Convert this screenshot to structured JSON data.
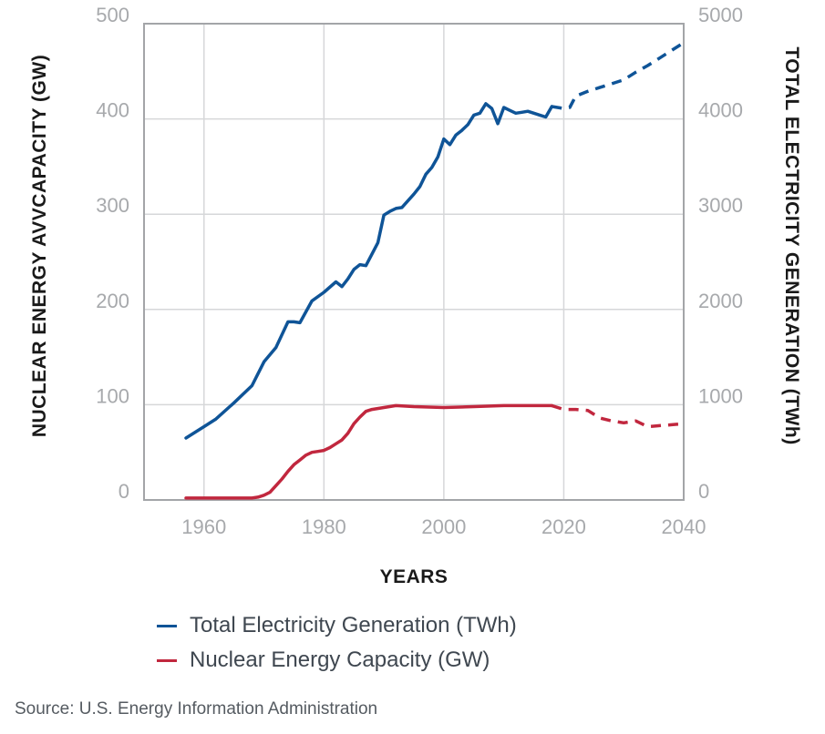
{
  "chart_data": {
    "type": "line",
    "title": "",
    "xlabel": "YEARS",
    "ylabel_left": "NUCLEAR ENERGY AVVCAPACITY (GW)",
    "ylabel_right": "TOTAL ELECTRICITY GENERATION (TWh)",
    "xlim": [
      1950,
      2040
    ],
    "ylim_left": [
      0,
      500
    ],
    "ylim_right": [
      0,
      5000
    ],
    "x_ticks": [
      "1960",
      "1980",
      "2000",
      "2020",
      "2040"
    ],
    "x_tick_values": [
      1960,
      1980,
      2000,
      2020,
      2040
    ],
    "y_left_ticks": [
      "0",
      "100",
      "200",
      "300",
      "400",
      "500"
    ],
    "y_left_tick_values": [
      0,
      100,
      200,
      300,
      400,
      500
    ],
    "y_right_ticks": [
      "0",
      "1000",
      "2000",
      "3000",
      "4000",
      "5000"
    ],
    "y_right_tick_values": [
      0,
      1000,
      2000,
      3000,
      4000,
      5000
    ],
    "grid": true,
    "legend_position": "bottom-left",
    "series": [
      {
        "name": "Total Electricity Generation (TWh)",
        "axis": "right",
        "color": "#0f5497",
        "historical": {
          "x": [
            1957,
            1960,
            1962,
            1965,
            1968,
            1970,
            1972,
            1974,
            1975,
            1976,
            1978,
            1980,
            1982,
            1983,
            1984,
            1985,
            1986,
            1987,
            1988,
            1989,
            1990,
            1991,
            1992,
            1993,
            1994,
            1995,
            1996,
            1997,
            1998,
            1999,
            2000,
            2001,
            2002,
            2003,
            2004,
            2005,
            2006,
            2007,
            2008,
            2009,
            2010,
            2011,
            2012,
            2013,
            2014,
            2015,
            2016,
            2017,
            2018
          ],
          "y": [
            650,
            770,
            850,
            1020,
            1200,
            1450,
            1600,
            1870,
            1870,
            1860,
            2090,
            2180,
            2290,
            2240,
            2320,
            2420,
            2470,
            2460,
            2580,
            2700,
            2990,
            3030,
            3060,
            3070,
            3140,
            3210,
            3290,
            3420,
            3490,
            3600,
            3790,
            3730,
            3830,
            3880,
            3940,
            4040,
            4060,
            4160,
            4110,
            3950,
            4120,
            4090,
            4060,
            4070,
            4080,
            4060,
            4040,
            4020,
            4130
          ]
        },
        "projected": {
          "x": [
            2018,
            2020,
            2021,
            2022,
            2024,
            2026,
            2028,
            2030,
            2032,
            2034,
            2036,
            2038,
            2040
          ],
          "y": [
            4130,
            4110,
            4120,
            4240,
            4290,
            4330,
            4370,
            4410,
            4490,
            4560,
            4640,
            4720,
            4800
          ]
        }
      },
      {
        "name": "Nuclear Energy Capacity (GW)",
        "axis": "left",
        "color": "#c1273e",
        "historical": {
          "x": [
            1957,
            1960,
            1965,
            1968,
            1969,
            1970,
            1971,
            1972,
            1973,
            1974,
            1975,
            1976,
            1977,
            1978,
            1979,
            1980,
            1981,
            1982,
            1983,
            1984,
            1985,
            1986,
            1987,
            1988,
            1990,
            1992,
            1995,
            2000,
            2005,
            2010,
            2015,
            2018
          ],
          "y": [
            2,
            2,
            2,
            2,
            3,
            5,
            8,
            15,
            22,
            30,
            37,
            42,
            47,
            50,
            51,
            52,
            55,
            59,
            63,
            70,
            80,
            87,
            93,
            95,
            97,
            99,
            98,
            97,
            98,
            99,
            99,
            99
          ]
        },
        "projected": {
          "x": [
            2018,
            2020,
            2022,
            2024,
            2026,
            2028,
            2030,
            2032,
            2034,
            2036,
            2038,
            2040
          ],
          "y": [
            99,
            95,
            95,
            94,
            86,
            83,
            81,
            83,
            77,
            78,
            79,
            80
          ]
        }
      }
    ]
  },
  "legend": {
    "items": [
      {
        "label": "Total Electricity Generation (TWh)",
        "color": "#0f5497"
      },
      {
        "label": "Nuclear Energy Capacity (GW)",
        "color": "#c1273e"
      }
    ]
  },
  "source": "Source: U.S. Energy Information Administration",
  "colors": {
    "grid": "#d6d7d9",
    "axis": "#a3a5a8",
    "tick_text": "#a7a9ac"
  }
}
